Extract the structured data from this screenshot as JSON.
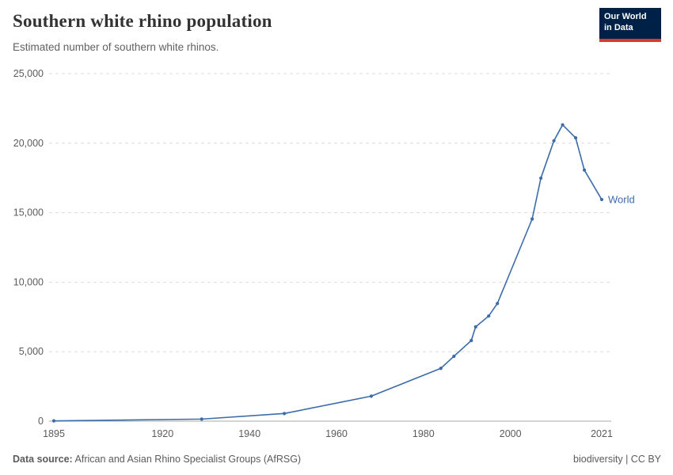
{
  "header": {
    "title": "Southern white rhino population",
    "subtitle": "Estimated number of southern white rhinos."
  },
  "logo": {
    "line1": "Our World",
    "line2": "in Data",
    "bg_color": "#002147",
    "accent_color": "#d93a2b"
  },
  "chart_data": {
    "type": "line",
    "title": "Southern white rhino population",
    "subtitle": "Estimated number of southern white rhinos.",
    "xlabel": "",
    "ylabel": "",
    "xlim": [
      1895,
      2021
    ],
    "ylim": [
      0,
      25000
    ],
    "xticks": [
      1895,
      1920,
      1940,
      1960,
      1980,
      2000,
      2021
    ],
    "yticks": [
      0,
      5000,
      10000,
      15000,
      20000,
      25000
    ],
    "grid": "horizontal-dashed",
    "gridline_color": "#dcdcdc",
    "axis_color": "#a9a9a9",
    "legend_position": "end-of-line",
    "series": [
      {
        "name": "World",
        "color": "#3c6ca8",
        "points": [
          [
            1895,
            20
          ],
          [
            1929,
            150
          ],
          [
            1948,
            550
          ],
          [
            1968,
            1800
          ],
          [
            1984,
            3800
          ],
          [
            1987,
            4665
          ],
          [
            1991,
            5800
          ],
          [
            1992,
            6784
          ],
          [
            1995,
            7563
          ],
          [
            1997,
            8466
          ],
          [
            2005,
            14543
          ],
          [
            2007,
            17480
          ],
          [
            2010,
            20170
          ],
          [
            2012,
            21316
          ],
          [
            2015,
            20378
          ],
          [
            2017,
            18064
          ],
          [
            2021,
            15942
          ]
        ]
      }
    ]
  },
  "footer": {
    "datasource_label": "Data source:",
    "datasource_text": "African and Asian Rhino Specialist Groups (AfRSG)",
    "license_left": "biodiversity",
    "license_sep": " | ",
    "license_right": "CC BY"
  }
}
